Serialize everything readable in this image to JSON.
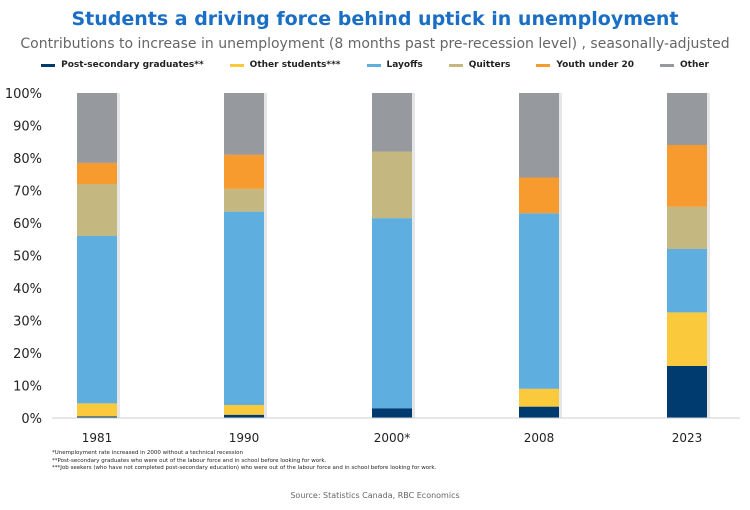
{
  "title": "Students a driving force behind uptick in unemployment",
  "subtitle": "Contributions to increase in unemployment (8 months past pre-recession level) , seasonally-adjusted",
  "chart_data": {
    "type": "bar",
    "stacked": true,
    "categories": [
      "1981",
      "1990",
      "2000*",
      "2008",
      "2023"
    ],
    "ylim": [
      0,
      100
    ],
    "yticks": [
      "0%",
      "10%",
      "20%",
      "30%",
      "40%",
      "50%",
      "60%",
      "70%",
      "80%",
      "90%",
      "100%"
    ],
    "grid": false,
    "legend_position": "top",
    "series": [
      {
        "name": "Post-secondary graduates**",
        "color": "#003b6f",
        "values": [
          0.5,
          1,
          3,
          3.5,
          16
        ]
      },
      {
        "name": "Other students***",
        "color": "#fbc93c",
        "values": [
          4,
          3,
          0,
          5.5,
          16.5
        ]
      },
      {
        "name": "Layoffs",
        "color": "#5faee0",
        "values": [
          51.5,
          59.5,
          58.5,
          54,
          19.5
        ]
      },
      {
        "name": "Quitters",
        "color": "#c4b77f",
        "values": [
          16,
          7,
          20.5,
          0,
          13
        ]
      },
      {
        "name": "Youth under 20",
        "color": "#f79b2e",
        "values": [
          6.5,
          10.5,
          0,
          11,
          19
        ]
      },
      {
        "name": "Other",
        "color": "#969a9e",
        "values": [
          21.5,
          19,
          18,
          26,
          16
        ]
      }
    ]
  },
  "footnotes": [
    "*Unemployment rate increased in 2000 without a technical recession",
    "**Post-secondary graduates who were out of the labour force and in school before looking for work.",
    "***Job seekers (who have not completed post-secondary education) who were out of the labour force and in school before looking for work."
  ],
  "source": "Source: Statistics Canada, RBC Economics"
}
